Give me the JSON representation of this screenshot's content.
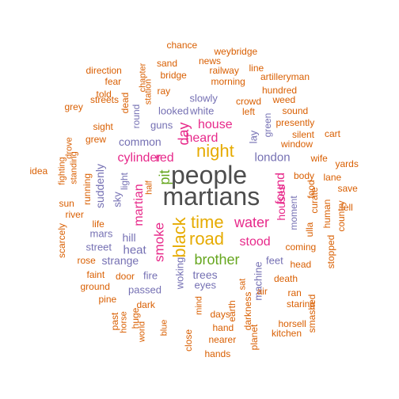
{
  "colors": {
    "orange": "#d95f02",
    "purple": "#7570b3",
    "magenta": "#e7298a",
    "green": "#66a61e",
    "gold": "#e6ab02",
    "dark": "#4d4d4d"
  },
  "words": [
    {
      "text": "people",
      "color": "dark"
    },
    {
      "text": "martians",
      "color": "dark"
    },
    {
      "text": "time",
      "color": "gold"
    },
    {
      "text": "black",
      "color": "gold"
    },
    {
      "text": "road",
      "color": "gold"
    },
    {
      "text": "night",
      "color": "gold"
    },
    {
      "text": "brother",
      "color": "green"
    },
    {
      "text": "pit",
      "color": "green"
    },
    {
      "text": "water",
      "color": "magenta"
    },
    {
      "text": "smoke",
      "color": "magenta"
    },
    {
      "text": "martian",
      "color": "magenta"
    },
    {
      "text": "cylinder",
      "color": "magenta"
    },
    {
      "text": "red",
      "color": "magenta"
    },
    {
      "text": "heard",
      "color": "magenta"
    },
    {
      "text": "house",
      "color": "magenta"
    },
    {
      "text": "day",
      "color": "magenta"
    },
    {
      "text": "found",
      "color": "magenta"
    },
    {
      "text": "houses",
      "color": "magenta"
    },
    {
      "text": "stood",
      "color": "magenta"
    },
    {
      "text": "london",
      "color": "purple"
    },
    {
      "text": "common",
      "color": "purple"
    },
    {
      "text": "suddenly",
      "color": "purple"
    },
    {
      "text": "heat",
      "color": "purple"
    },
    {
      "text": "hill",
      "color": "purple"
    },
    {
      "text": "trees",
      "color": "purple"
    },
    {
      "text": "strange",
      "color": "purple"
    },
    {
      "text": "fire",
      "color": "purple"
    },
    {
      "text": "eyes",
      "color": "purple"
    },
    {
      "text": "woking",
      "color": "purple"
    },
    {
      "text": "passed",
      "color": "purple"
    },
    {
      "text": "looked",
      "color": "purple"
    },
    {
      "text": "white",
      "color": "purple"
    },
    {
      "text": "slowly",
      "color": "purple"
    },
    {
      "text": "guns",
      "color": "purple"
    },
    {
      "text": "round",
      "color": "purple"
    },
    {
      "text": "sky",
      "color": "purple"
    },
    {
      "text": "light",
      "color": "purple"
    },
    {
      "text": "mars",
      "color": "purple"
    },
    {
      "text": "street",
      "color": "purple"
    },
    {
      "text": "lay",
      "color": "purple"
    },
    {
      "text": "green",
      "color": "purple"
    },
    {
      "text": "moment",
      "color": "purple"
    },
    {
      "text": "feet",
      "color": "purple"
    },
    {
      "text": "machine",
      "color": "purple"
    },
    {
      "text": "chance",
      "color": "orange"
    },
    {
      "text": "weybridge",
      "color": "orange"
    },
    {
      "text": "news",
      "color": "orange"
    },
    {
      "text": "sand",
      "color": "orange"
    },
    {
      "text": "line",
      "color": "orange"
    },
    {
      "text": "direction",
      "color": "orange"
    },
    {
      "text": "chapter",
      "color": "orange"
    },
    {
      "text": "railway",
      "color": "orange"
    },
    {
      "text": "told",
      "color": "orange"
    },
    {
      "text": "bridge",
      "color": "orange"
    },
    {
      "text": "artilleryman",
      "color": "orange"
    },
    {
      "text": "fear",
      "color": "orange"
    },
    {
      "text": "station",
      "color": "orange"
    },
    {
      "text": "morning",
      "color": "orange"
    },
    {
      "text": "hundred",
      "color": "orange"
    },
    {
      "text": "ray",
      "color": "orange"
    },
    {
      "text": "streets",
      "color": "orange"
    },
    {
      "text": "dead",
      "color": "orange"
    },
    {
      "text": "crowd",
      "color": "orange"
    },
    {
      "text": "weed",
      "color": "orange"
    },
    {
      "text": "grey",
      "color": "orange"
    },
    {
      "text": "left",
      "color": "orange"
    },
    {
      "text": "sound",
      "color": "orange"
    },
    {
      "text": "sight",
      "color": "orange"
    },
    {
      "text": "presently",
      "color": "orange"
    },
    {
      "text": "silent",
      "color": "orange"
    },
    {
      "text": "cart",
      "color": "orange"
    },
    {
      "text": "grew",
      "color": "orange"
    },
    {
      "text": "drove",
      "color": "orange"
    },
    {
      "text": "window",
      "color": "orange"
    },
    {
      "text": "yards",
      "color": "orange"
    },
    {
      "text": "fighting",
      "color": "orange"
    },
    {
      "text": "idea",
      "color": "orange"
    },
    {
      "text": "standing",
      "color": "orange"
    },
    {
      "text": "body",
      "color": "orange"
    },
    {
      "text": "wife",
      "color": "orange"
    },
    {
      "text": "lane",
      "color": "orange"
    },
    {
      "text": "food",
      "color": "orange"
    },
    {
      "text": "save",
      "color": "orange"
    },
    {
      "text": "running",
      "color": "orange"
    },
    {
      "text": "sun",
      "color": "orange"
    },
    {
      "text": "curate",
      "color": "orange"
    },
    {
      "text": "half",
      "color": "orange"
    },
    {
      "text": "river",
      "color": "orange"
    },
    {
      "text": "human",
      "color": "orange"
    },
    {
      "text": "life",
      "color": "orange"
    },
    {
      "text": "country",
      "color": "orange"
    },
    {
      "text": "fell",
      "color": "orange"
    },
    {
      "text": "scarcely",
      "color": "orange"
    },
    {
      "text": "ulla",
      "color": "orange"
    },
    {
      "text": "coming",
      "color": "orange"
    },
    {
      "text": "rose",
      "color": "orange"
    },
    {
      "text": "head",
      "color": "orange"
    },
    {
      "text": "stopped",
      "color": "orange"
    },
    {
      "text": "faint",
      "color": "orange"
    },
    {
      "text": "door",
      "color": "orange"
    },
    {
      "text": "ground",
      "color": "orange"
    },
    {
      "text": "death",
      "color": "orange"
    },
    {
      "text": "sat",
      "color": "orange"
    },
    {
      "text": "air",
      "color": "orange"
    },
    {
      "text": "ran",
      "color": "orange"
    },
    {
      "text": "pine",
      "color": "orange"
    },
    {
      "text": "dark",
      "color": "orange"
    },
    {
      "text": "mind",
      "color": "orange"
    },
    {
      "text": "earth",
      "color": "orange"
    },
    {
      "text": "darkness",
      "color": "orange"
    },
    {
      "text": "staring",
      "color": "orange"
    },
    {
      "text": "horse",
      "color": "orange"
    },
    {
      "text": "days",
      "color": "orange"
    },
    {
      "text": "huge",
      "color": "orange"
    },
    {
      "text": "smashed",
      "color": "orange"
    },
    {
      "text": "past",
      "color": "orange"
    },
    {
      "text": "world",
      "color": "orange"
    },
    {
      "text": "blue",
      "color": "orange"
    },
    {
      "text": "hand",
      "color": "orange"
    },
    {
      "text": "horsell",
      "color": "orange"
    },
    {
      "text": "close",
      "color": "orange"
    },
    {
      "text": "nearer",
      "color": "orange"
    },
    {
      "text": "planet",
      "color": "orange"
    },
    {
      "text": "kitchen",
      "color": "orange"
    },
    {
      "text": "hands",
      "color": "orange"
    }
  ]
}
